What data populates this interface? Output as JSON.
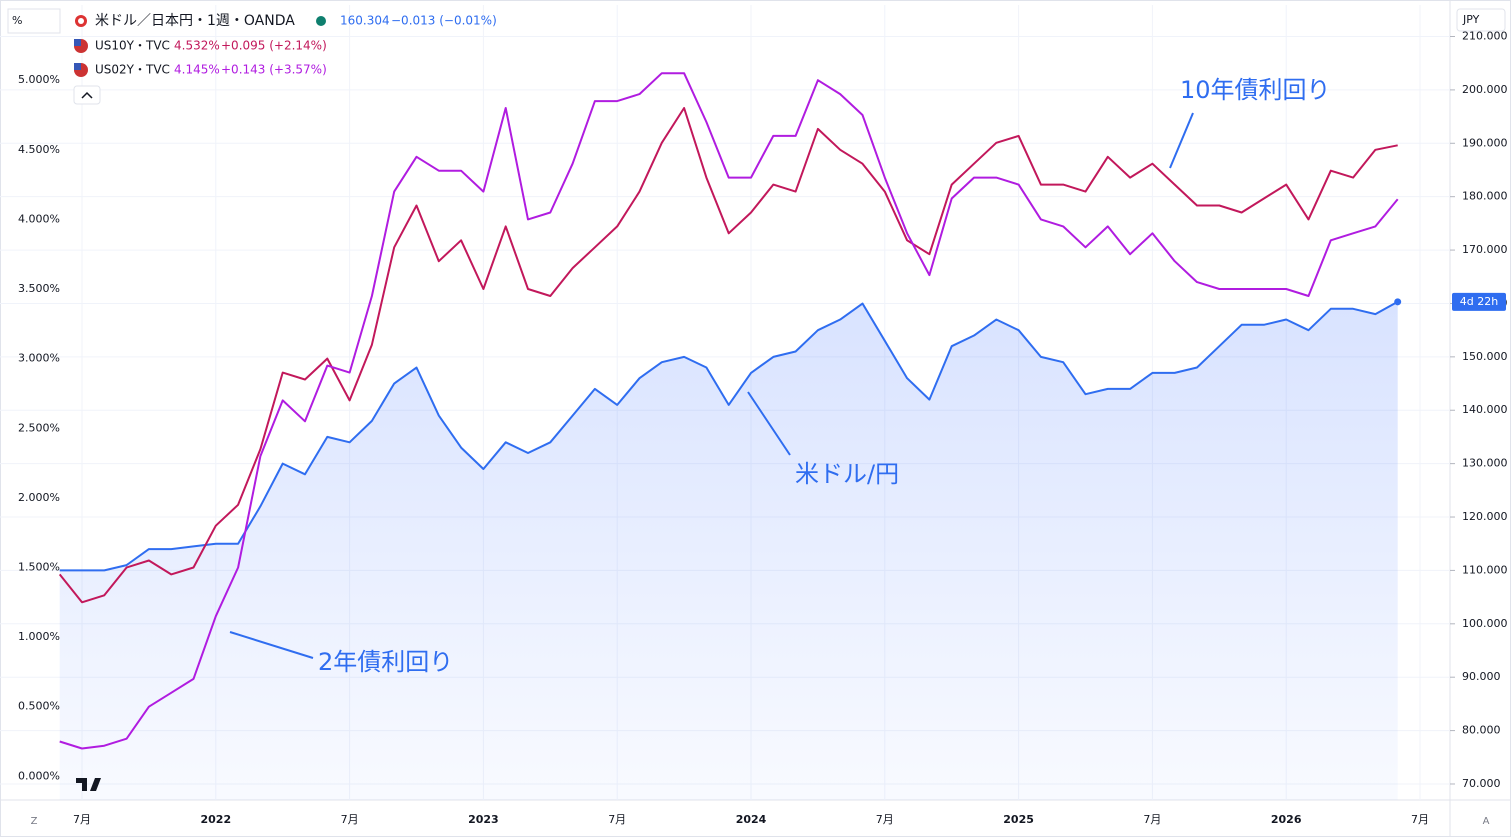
{
  "chart_data": {
    "type": "line",
    "categories": [
      null,
      "7月",
      null,
      null,
      null,
      null,
      null,
      "2022",
      null,
      null,
      null,
      null,
      null,
      "7月",
      null,
      null,
      null,
      null,
      null,
      "2023",
      null,
      null,
      null,
      null,
      null,
      "7月",
      null,
      null,
      null,
      null,
      null,
      "2024",
      null,
      null,
      null,
      null,
      null,
      "7月",
      null,
      null,
      null,
      null,
      null,
      "2025",
      null,
      null,
      null,
      null,
      null,
      "7月",
      null,
      null,
      null,
      null,
      null,
      "2026",
      null,
      null,
      null,
      null,
      null,
      "7月"
    ],
    "series": [
      {
        "name": "米ドル／日本円・1週・OANDA",
        "axis": "y2",
        "area": true,
        "color": "#2f6df0",
        "last_label": "160.304",
        "change_label": "−0.013 (−0.01%)",
        "values": [
          110,
          110,
          110,
          111,
          114,
          114,
          114.5,
          115,
          115,
          122,
          130,
          128,
          135,
          134,
          138,
          145,
          148,
          139,
          133,
          129,
          134,
          132,
          134,
          139,
          144,
          141,
          146,
          149,
          150,
          148,
          141,
          147,
          150,
          151,
          155,
          157,
          160,
          153,
          146,
          142,
          152,
          154,
          157,
          155,
          150,
          149,
          143,
          144,
          144,
          147,
          147,
          148,
          152,
          156,
          156,
          157,
          155,
          159,
          159,
          158,
          160.304,
          null
        ]
      },
      {
        "name": "US10Y・TVC",
        "axis": "y",
        "color": "#c2185b",
        "last_label": "4.532%",
        "change_label": "+0.095 (+2.14%)",
        "values": [
          1.45,
          1.25,
          1.3,
          1.5,
          1.55,
          1.45,
          1.5,
          1.8,
          1.95,
          2.35,
          2.9,
          2.85,
          3.0,
          2.7,
          3.1,
          3.8,
          4.1,
          3.7,
          3.85,
          3.5,
          3.95,
          3.5,
          3.45,
          3.65,
          3.8,
          3.95,
          4.2,
          4.55,
          4.8,
          4.3,
          3.9,
          4.05,
          4.25,
          4.2,
          4.65,
          4.5,
          4.4,
          4.2,
          3.85,
          3.75,
          4.25,
          4.4,
          4.55,
          4.6,
          4.25,
          4.25,
          4.2,
          4.45,
          4.3,
          4.4,
          4.25,
          4.1,
          4.1,
          4.05,
          4.15,
          4.25,
          4.0,
          4.35,
          4.3,
          4.5,
          4.532,
          null
        ]
      },
      {
        "name": "US02Y・TVC",
        "axis": "y",
        "color": "#b01ce0",
        "last_label": "4.145%",
        "change_label": "+0.143 (+3.57%)",
        "values": [
          0.25,
          0.2,
          0.22,
          0.27,
          0.5,
          0.6,
          0.7,
          1.15,
          1.5,
          2.3,
          2.7,
          2.55,
          2.95,
          2.9,
          3.45,
          4.2,
          4.45,
          4.35,
          4.35,
          4.2,
          4.8,
          4.0,
          4.05,
          4.4,
          4.85,
          4.85,
          4.9,
          5.05,
          5.05,
          4.7,
          4.3,
          4.3,
          4.6,
          4.6,
          5.0,
          4.9,
          4.75,
          4.3,
          3.9,
          3.6,
          4.15,
          4.3,
          4.3,
          4.25,
          4.0,
          3.95,
          3.8,
          3.95,
          3.75,
          3.9,
          3.7,
          3.55,
          3.5,
          3.5,
          3.5,
          3.5,
          3.45,
          3.85,
          3.9,
          3.95,
          4.145,
          null
        ]
      }
    ],
    "ylim": [
      -0.17,
      5.54
    ],
    "yticks": [
      {
        "value": 0,
        "label": "0.000%"
      },
      {
        "value": 0.5,
        "label": "0.500%"
      },
      {
        "value": 1,
        "label": "1.000%"
      },
      {
        "value": 1.5,
        "label": "1.500%"
      },
      {
        "value": 2,
        "label": "2.000%"
      },
      {
        "value": 2.5,
        "label": "2.500%"
      },
      {
        "value": 3,
        "label": "3.000%"
      },
      {
        "value": 3.5,
        "label": "3.500%"
      },
      {
        "value": 4,
        "label": "4.000%"
      },
      {
        "value": 4.5,
        "label": "4.500%"
      },
      {
        "value": 5,
        "label": "5.000%"
      }
    ],
    "y2lim": [
      67,
      215.9
    ],
    "y2ticks": [
      {
        "value": 70,
        "label": "70.000"
      },
      {
        "value": 80,
        "label": "80.000"
      },
      {
        "value": 90,
        "label": "90.000"
      },
      {
        "value": 100,
        "label": "100.000"
      },
      {
        "value": 110,
        "label": "110.000"
      },
      {
        "value": 120,
        "label": "120.000"
      },
      {
        "value": 130,
        "label": "130.000"
      },
      {
        "value": 140,
        "label": "140.000"
      },
      {
        "value": 150,
        "label": "150.000"
      },
      {
        "value": 160,
        "label": "160.000"
      },
      {
        "value": 170,
        "label": "170.000"
      },
      {
        "value": 180,
        "label": "180.000"
      },
      {
        "value": 190,
        "label": "190.000"
      },
      {
        "value": 200,
        "label": "200.000"
      },
      {
        "value": 210,
        "label": "210.000"
      }
    ],
    "grid": true,
    "annotations": [
      "10年債利回り",
      "米ドル/円",
      "2年債利回り"
    ],
    "ui": {
      "scale_label": "%",
      "currency": "JPY",
      "countdown": "4d 22h",
      "left_button": "Z",
      "right_button": "A"
    }
  }
}
